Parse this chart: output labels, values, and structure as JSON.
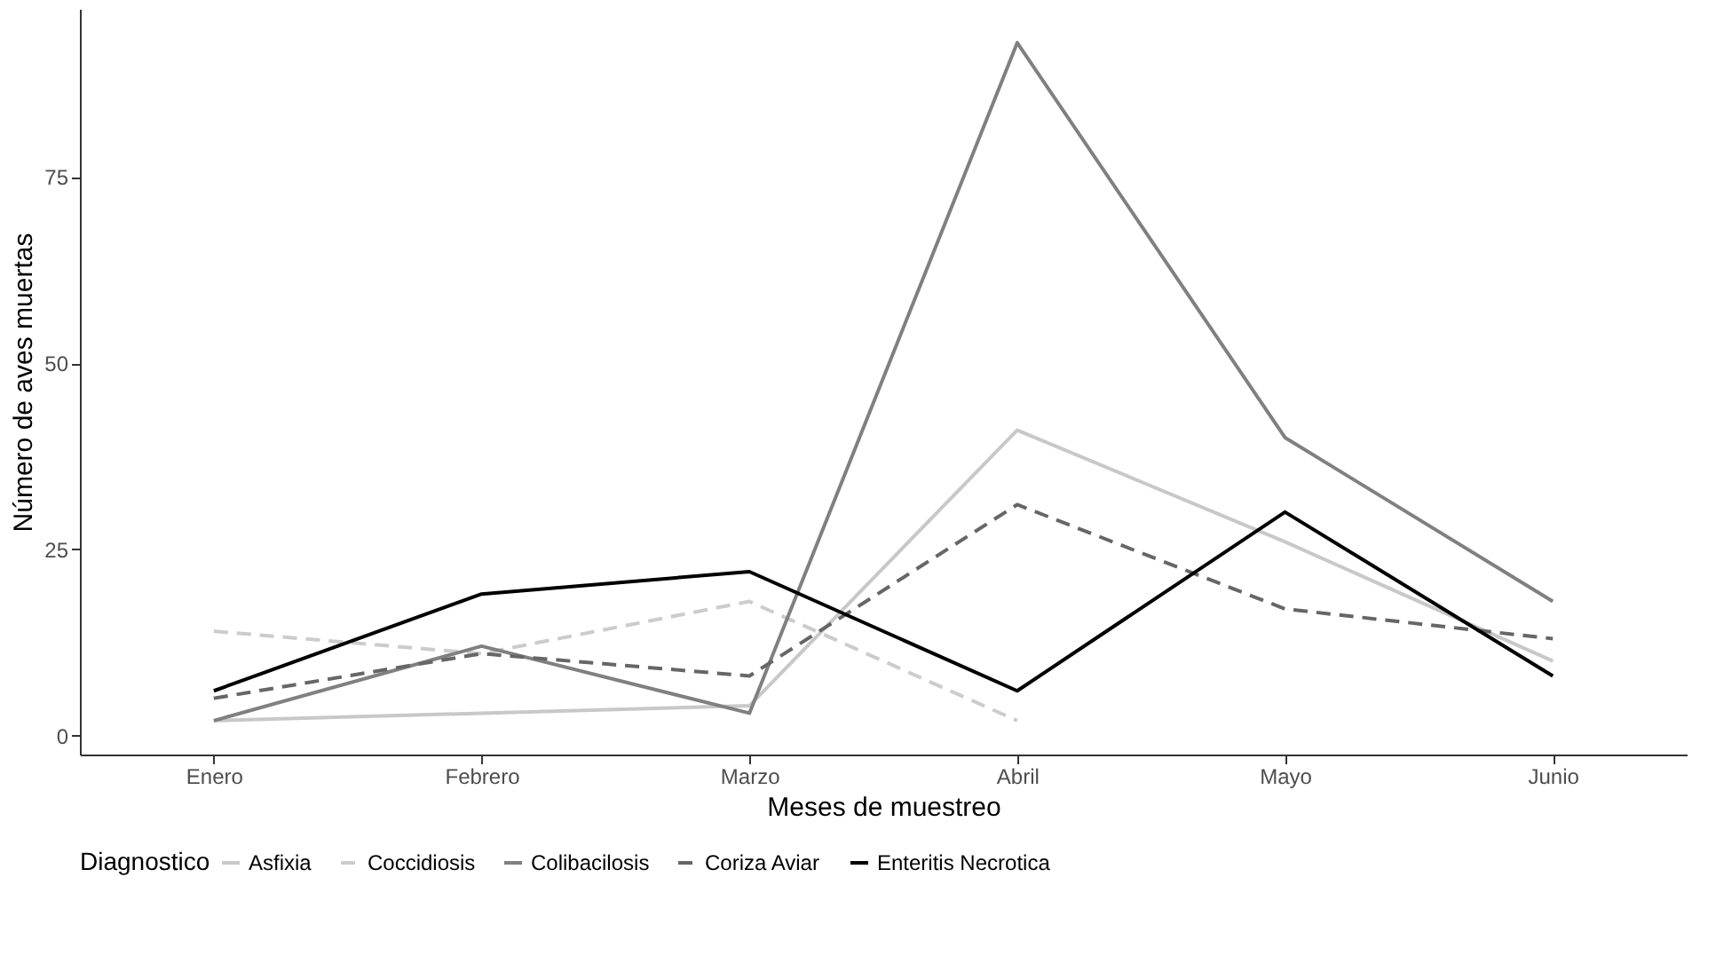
{
  "chart_data": {
    "type": "line",
    "xlabel": "Meses de muestreo",
    "ylabel": "Número de aves muertas",
    "legend_title": "Diagnostico",
    "categories": [
      "Enero",
      "Febrero",
      "Marzo",
      "Abril",
      "Mayo",
      "Junio"
    ],
    "series": [
      {
        "name": "Asfixia",
        "color": "#c8c8c8",
        "line_style": "solid",
        "values": [
          2,
          3,
          4,
          41,
          26,
          10
        ]
      },
      {
        "name": "Coccidiosis",
        "color": "#cccccc",
        "line_style": "dashed",
        "values": [
          14,
          11,
          18,
          2,
          null,
          null
        ]
      },
      {
        "name": "Colibacilosis",
        "color": "#808080",
        "line_style": "solid",
        "values": [
          2,
          12,
          3,
          93,
          40,
          18
        ]
      },
      {
        "name": "Coriza Aviar",
        "color": "#666666",
        "line_style": "dashed",
        "values": [
          5,
          11,
          8,
          31,
          17,
          13
        ]
      },
      {
        "name": "Enteritis Necrotica",
        "color": "#000000",
        "line_style": "solid",
        "values": [
          6,
          19,
          22,
          6,
          30,
          8
        ]
      }
    ],
    "ylim": [
      -2.55,
      97.55
    ],
    "yticks": [
      0,
      25,
      50,
      75
    ],
    "grid": false,
    "legend": "bottom"
  }
}
